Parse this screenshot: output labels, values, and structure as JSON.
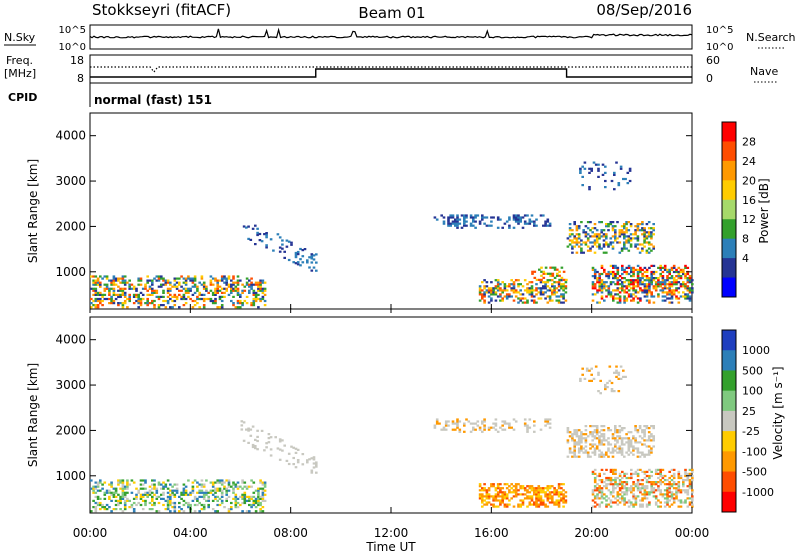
{
  "header": {
    "station": "Stokkseyri (fitACF)",
    "beam": "Beam 01",
    "date": "08/Sep/2016"
  },
  "top_panels": {
    "nsky_label": "N.Sky",
    "nsearch_label": "N.Search",
    "noise_ticks_left": [
      "10^5",
      "10^0"
    ],
    "noise_ticks_right": [
      "10^5",
      "10^0"
    ],
    "freq_label_line1": "Freq.",
    "freq_label_line2": "[MHz]",
    "freq_ticks": [
      "18",
      "8"
    ],
    "nave_label": "Nave",
    "nave_ticks": [
      "60",
      "0"
    ],
    "cpid_label": "CPID",
    "cpid_text": "normal (fast) 151",
    "nave_step": {
      "low_until_hour": 9.0,
      "high_until_hour": 19.0
    }
  },
  "time_axis": {
    "label": "Time UT",
    "ticks": [
      "00:00",
      "04:00",
      "08:00",
      "12:00",
      "16:00",
      "20:00",
      "00:00"
    ],
    "range_hours": [
      0,
      24
    ]
  },
  "chart_data": [
    {
      "type": "heatmap",
      "name": "power",
      "ylabel": "Slant Range [km]",
      "ylim": [
        180,
        4500
      ],
      "yticks": [
        1000,
        2000,
        3000,
        4000
      ],
      "xlim": [
        0,
        24
      ],
      "colorbar": {
        "label": "Power [dB]",
        "ticks": [
          "28",
          "24",
          "20",
          "16",
          "12",
          "8",
          "4"
        ],
        "colors": [
          "#ff0000",
          "#ff4d00",
          "#ff9900",
          "#ffcc00",
          "#a6d96a",
          "#33a02c",
          "#2c7fb8",
          "#253494",
          "#0000ff"
        ]
      },
      "regions": [
        {
          "t0": 0.0,
          "t1": 7.0,
          "r0": 200,
          "r1": 900,
          "colors": [
            "#253494",
            "#2c7fb8",
            "#33a02c",
            "#ffcc00",
            "#ff9900",
            "#ff4d00"
          ],
          "density": 0.55
        },
        {
          "t0": 6.0,
          "t1": 9.0,
          "r0": 1550,
          "r1": 2350,
          "colors": [
            "#253494",
            "#2c7fb8"
          ],
          "density": 0.22,
          "slope": -0.26
        },
        {
          "t0": 13.7,
          "t1": 18.3,
          "r0": 1950,
          "r1": 2250,
          "colors": [
            "#253494",
            "#2c7fb8"
          ],
          "density": 0.45
        },
        {
          "t0": 15.5,
          "t1": 19.0,
          "r0": 300,
          "r1": 800,
          "colors": [
            "#253494",
            "#2c7fb8",
            "#33a02c",
            "#ffcc00",
            "#ff9900",
            "#ff4d00"
          ],
          "density": 0.62
        },
        {
          "t0": 17.5,
          "t1": 19.0,
          "r0": 800,
          "r1": 1100,
          "colors": [
            "#33a02c",
            "#ffcc00",
            "#ff4d00"
          ],
          "density": 0.35
        },
        {
          "t0": 19.0,
          "t1": 22.5,
          "r0": 1400,
          "r1": 2100,
          "colors": [
            "#253494",
            "#2c7fb8",
            "#33a02c",
            "#ffcc00",
            "#ff9900"
          ],
          "density": 0.52
        },
        {
          "t0": 19.5,
          "t1": 21.5,
          "r0": 2800,
          "r1": 3400,
          "colors": [
            "#253494",
            "#2c7fb8"
          ],
          "density": 0.18
        },
        {
          "t0": 20.0,
          "t1": 24.0,
          "r0": 300,
          "r1": 1150,
          "colors": [
            "#253494",
            "#2c7fb8",
            "#33a02c",
            "#ffcc00",
            "#ff9900",
            "#ff4d00",
            "#ff0000"
          ],
          "density": 0.65
        }
      ]
    },
    {
      "type": "heatmap",
      "name": "velocity",
      "ylabel": "Slant Range [km]",
      "ylim": [
        180,
        4500
      ],
      "yticks": [
        1000,
        2000,
        3000,
        4000
      ],
      "xlim": [
        0,
        24
      ],
      "colorbar": {
        "label": "Velocity [m s⁻¹]",
        "ticks": [
          "1000",
          "500",
          "100",
          "25",
          "-25",
          "-100",
          "-500",
          "-1000"
        ],
        "colors": [
          "#1f3fbf",
          "#2c7fb8",
          "#33a02c",
          "#7fc97f",
          "#c8c8c0",
          "#ffcc00",
          "#ff9900",
          "#ff4d00",
          "#ff0000"
        ]
      },
      "regions": [
        {
          "t0": 0.0,
          "t1": 7.0,
          "r0": 200,
          "r1": 900,
          "colors": [
            "#33a02c",
            "#7fc97f",
            "#c8c8c0",
            "#ffcc00",
            "#2c7fb8"
          ],
          "density": 0.5
        },
        {
          "t0": 6.0,
          "t1": 9.0,
          "r0": 1550,
          "r1": 2350,
          "colors": [
            "#c8c8c0"
          ],
          "density": 0.2,
          "slope": -0.26
        },
        {
          "t0": 13.7,
          "t1": 18.3,
          "r0": 1950,
          "r1": 2250,
          "colors": [
            "#c8c8c0",
            "#c8c8c0",
            "#ff9900"
          ],
          "density": 0.4
        },
        {
          "t0": 15.5,
          "t1": 19.0,
          "r0": 300,
          "r1": 800,
          "colors": [
            "#ff9900",
            "#ff9900",
            "#ff4d00",
            "#ffcc00"
          ],
          "density": 0.68
        },
        {
          "t0": 19.0,
          "t1": 22.5,
          "r0": 1400,
          "r1": 2100,
          "colors": [
            "#c8c8c0",
            "#c8c8c0",
            "#c8c8c0",
            "#ff9900"
          ],
          "density": 0.55
        },
        {
          "t0": 19.5,
          "t1": 21.5,
          "r0": 2800,
          "r1": 3400,
          "colors": [
            "#c8c8c0",
            "#ff9900"
          ],
          "density": 0.15
        },
        {
          "t0": 20.0,
          "t1": 24.0,
          "r0": 300,
          "r1": 1150,
          "colors": [
            "#c8c8c0",
            "#c8c8c0",
            "#ff9900",
            "#ff4d00",
            "#7fc97f"
          ],
          "density": 0.62
        }
      ]
    }
  ]
}
